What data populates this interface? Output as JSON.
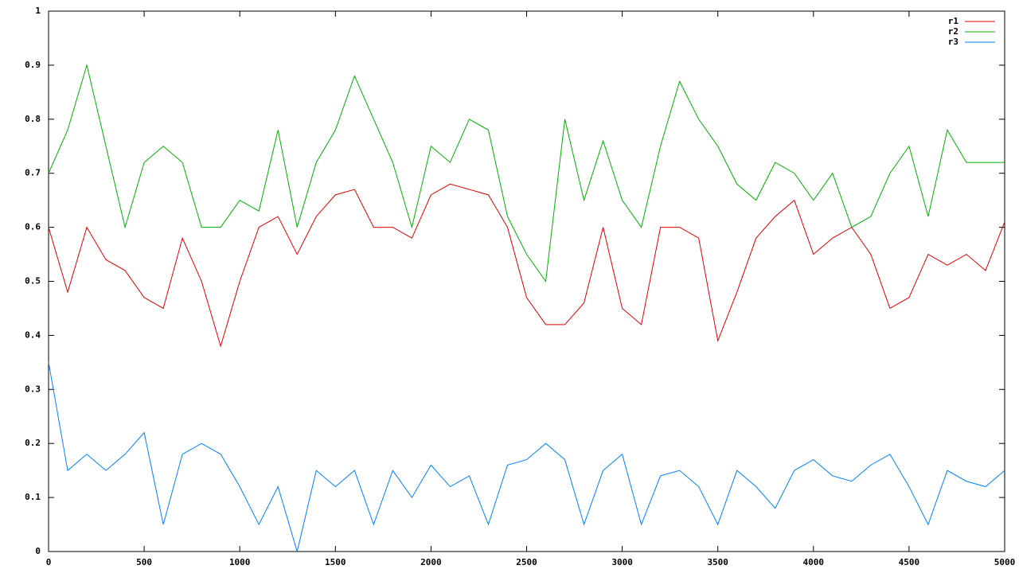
{
  "chart_data": {
    "type": "line",
    "x": [
      0,
      100,
      200,
      300,
      400,
      500,
      600,
      700,
      800,
      900,
      1000,
      1100,
      1200,
      1300,
      1400,
      1500,
      1600,
      1700,
      1800,
      1900,
      2000,
      2100,
      2200,
      2300,
      2400,
      2500,
      2600,
      2700,
      2800,
      2900,
      3000,
      3100,
      3200,
      3300,
      3400,
      3500,
      3600,
      3700,
      3800,
      3900,
      4000,
      4100,
      4200,
      4300,
      4400,
      4500,
      4600,
      4700,
      4800,
      4900,
      5000
    ],
    "series": [
      {
        "name": "r1",
        "color": "#e00000",
        "values": [
          0.6,
          0.48,
          0.6,
          0.54,
          0.52,
          0.47,
          0.45,
          0.58,
          0.5,
          0.38,
          0.5,
          0.6,
          0.62,
          0.55,
          0.62,
          0.66,
          0.67,
          0.6,
          0.6,
          0.58,
          0.66,
          0.68,
          0.67,
          0.66,
          0.6,
          0.47,
          0.42,
          0.42,
          0.46,
          0.6,
          0.45,
          0.42,
          0.6,
          0.6,
          0.58,
          0.39,
          0.48,
          0.58,
          0.62,
          0.65,
          0.55,
          0.58,
          0.6,
          0.55,
          0.45,
          0.47,
          0.55,
          0.53,
          0.55,
          0.52,
          0.61
        ]
      },
      {
        "name": "r2",
        "color": "#00b000",
        "values": [
          0.7,
          0.78,
          0.9,
          0.75,
          0.6,
          0.72,
          0.75,
          0.72,
          0.6,
          0.6,
          0.65,
          0.63,
          0.78,
          0.6,
          0.72,
          0.78,
          0.88,
          0.8,
          0.72,
          0.6,
          0.75,
          0.72,
          0.8,
          0.78,
          0.62,
          0.55,
          0.5,
          0.8,
          0.65,
          0.76,
          0.65,
          0.6,
          0.75,
          0.87,
          0.8,
          0.75,
          0.68,
          0.65,
          0.72,
          0.7,
          0.65,
          0.7,
          0.6,
          0.62,
          0.7,
          0.75,
          0.62,
          0.78,
          0.72,
          0.72,
          0.72
        ]
      },
      {
        "name": "r3",
        "color": "#0080ff",
        "values": [
          0.35,
          0.15,
          0.18,
          0.15,
          0.18,
          0.22,
          0.05,
          0.18,
          0.2,
          0.18,
          0.12,
          0.05,
          0.12,
          0,
          0.15,
          0.12,
          0.15,
          0.05,
          0.15,
          0.1,
          0.16,
          0.12,
          0.14,
          0.05,
          0.16,
          0.17,
          0.2,
          0.17,
          0.05,
          0.15,
          0.18,
          0.05,
          0.14,
          0.15,
          0.12,
          0.05,
          0.15,
          0.12,
          0.08,
          0.15,
          0.17,
          0.14,
          0.13,
          0.16,
          0.18,
          0.12,
          0.05,
          0.15,
          0.13,
          0.12,
          0.15
        ]
      }
    ],
    "xlim": [
      0,
      5000
    ],
    "xticks": [
      0,
      500,
      1000,
      1500,
      2000,
      2500,
      3000,
      3500,
      4000,
      4500,
      5000
    ],
    "ylim": [
      0,
      1
    ],
    "yticks": [
      0,
      0.1,
      0.2,
      0.3,
      0.4,
      0.5,
      0.6,
      0.7,
      0.8,
      0.9,
      1
    ],
    "grid": false,
    "legend": "top-right"
  }
}
